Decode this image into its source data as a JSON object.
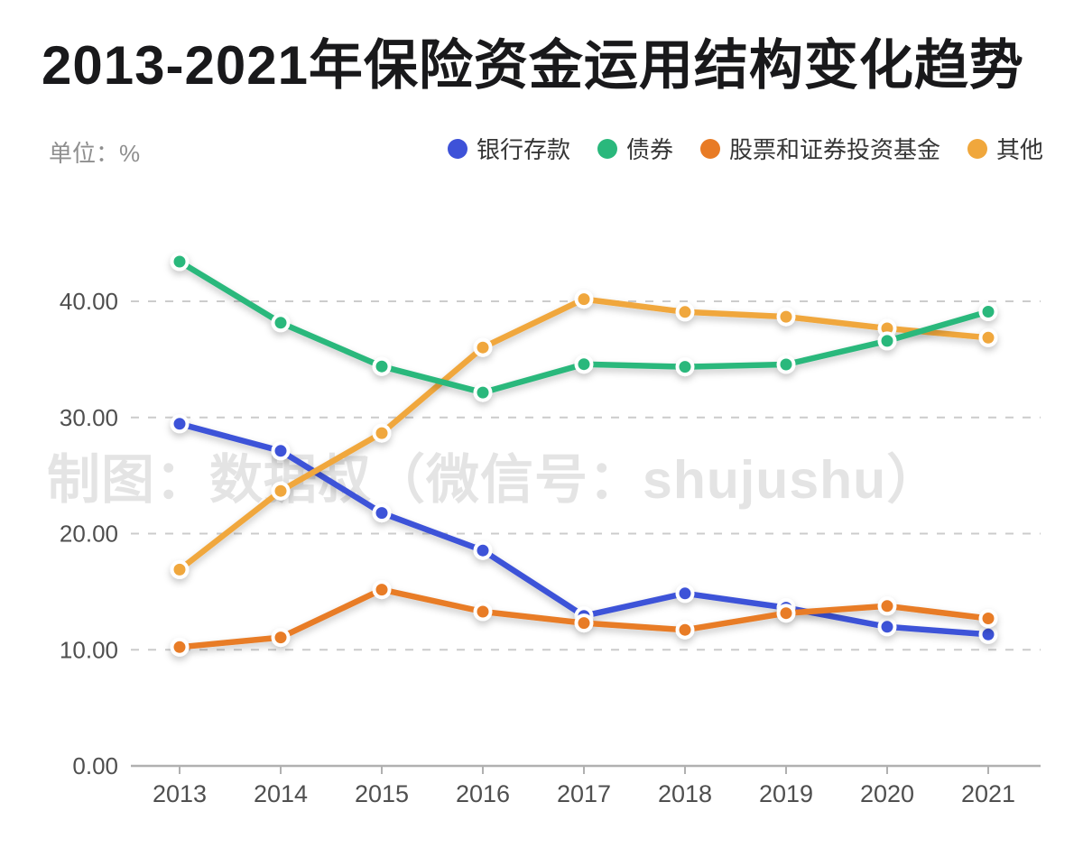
{
  "header": {
    "title": "2013-2021年保险资金运用结构变化趋势",
    "unit_label": "单位：%"
  },
  "watermark": "制图：数据叔（微信号：shujushu）",
  "colors": {
    "title_text": "#19191b",
    "unit_text": "#8f8f8f",
    "legend_text": "#363636",
    "axis_line": "#b0b0b0",
    "grid_line": "#cccccc",
    "tick_label": "#4f4f4f",
    "watermark_text": "#e4e4e4",
    "background": "#ffffff"
  },
  "chart_data": {
    "type": "line",
    "title": "2013-2021年保险资金运用结构变化趋势",
    "unit": "%",
    "categories": [
      "2013",
      "2014",
      "2015",
      "2016",
      "2017",
      "2018",
      "2019",
      "2020",
      "2021"
    ],
    "series": [
      {
        "name": "银行存款",
        "key": "bank-deposits",
        "color": "#3e52d8",
        "values": [
          29.45,
          27.12,
          21.78,
          18.55,
          12.92,
          14.85,
          13.62,
          11.98,
          11.32
        ]
      },
      {
        "name": "债券",
        "key": "bonds",
        "color": "#2ab87c",
        "values": [
          43.42,
          38.15,
          34.39,
          32.15,
          34.59,
          34.36,
          34.56,
          36.59,
          39.11
        ]
      },
      {
        "name": "股票和证券投资基金",
        "key": "stocks-and-funds",
        "color": "#e87b25",
        "values": [
          10.23,
          11.06,
          15.18,
          13.28,
          12.3,
          11.71,
          13.15,
          13.76,
          12.7
        ]
      },
      {
        "name": "其他",
        "key": "others",
        "color": "#f0a73c",
        "values": [
          16.9,
          23.67,
          28.65,
          36.02,
          40.19,
          39.08,
          38.67,
          37.67,
          36.87
        ]
      }
    ],
    "y_ticks": [
      0,
      10,
      20,
      30,
      40
    ],
    "y_tick_labels": [
      "0.00",
      "10.00",
      "20.00",
      "30.00",
      "40.00"
    ],
    "ylim": [
      0,
      45.2
    ],
    "xlabel": "",
    "ylabel": "单位：%",
    "grid": "dashed-horizontal",
    "legend_position": "top-right",
    "marker": "circle-with-white-ring"
  }
}
